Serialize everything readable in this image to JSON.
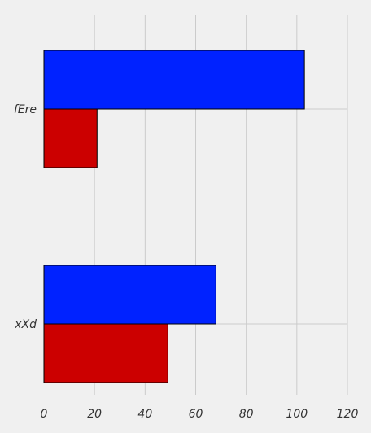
{
  "chart_data": {
    "type": "bar",
    "orientation": "horizontal",
    "categories": [
      "fEre",
      "xXd"
    ],
    "series": [
      {
        "color": "#0022ff",
        "values": [
          103,
          68
        ]
      },
      {
        "color": "#cc0000",
        "values": [
          21,
          49
        ]
      }
    ],
    "xlim": [
      0,
      120
    ],
    "xticks": [
      "0",
      "20",
      "40",
      "60",
      "80",
      "100",
      "120"
    ],
    "grid": true,
    "title": "",
    "xlabel": "",
    "ylabel": ""
  }
}
